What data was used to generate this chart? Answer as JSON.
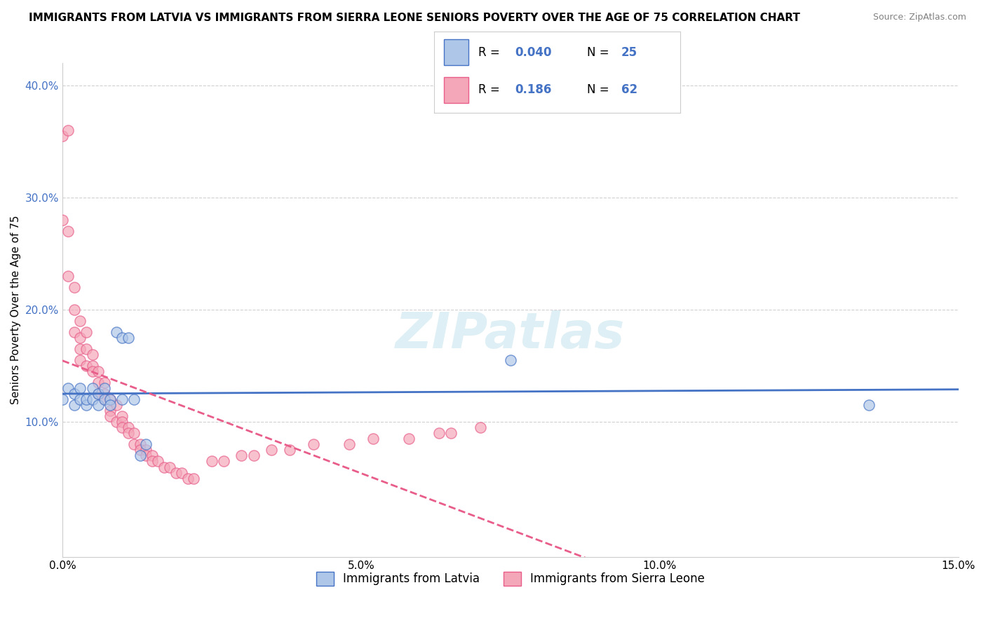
{
  "title": "IMMIGRANTS FROM LATVIA VS IMMIGRANTS FROM SIERRA LEONE SENIORS POVERTY OVER THE AGE OF 75 CORRELATION CHART",
  "source": "Source: ZipAtlas.com",
  "ylabel": "Seniors Poverty Over the Age of 75",
  "xlabel_latvia": "Immigrants from Latvia",
  "xlabel_sierra": "Immigrants from Sierra Leone",
  "watermark": "ZIPatlas",
  "xlim": [
    0.0,
    0.15
  ],
  "ylim": [
    -0.02,
    0.42
  ],
  "yticks": [
    0.1,
    0.2,
    0.3,
    0.4
  ],
  "ytick_labels": [
    "10.0%",
    "20.0%",
    "30.0%",
    "40.0%"
  ],
  "xticks": [
    0.0,
    0.05,
    0.1,
    0.15
  ],
  "xtick_labels": [
    "0.0%",
    "5.0%",
    "10.0%",
    "15.0%"
  ],
  "r_latvia": 0.04,
  "n_latvia": 25,
  "r_sierra": 0.186,
  "n_sierra": 62,
  "color_latvia": "#aec6e8",
  "color_sierra": "#f4a7b9",
  "trendline_latvia": "#4472c4",
  "trendline_sierra": "#e85d8a",
  "latvia_x": [
    0.0,
    0.001,
    0.002,
    0.002,
    0.003,
    0.003,
    0.004,
    0.004,
    0.005,
    0.005,
    0.006,
    0.006,
    0.007,
    0.007,
    0.008,
    0.008,
    0.009,
    0.01,
    0.01,
    0.011,
    0.012,
    0.013,
    0.014,
    0.075,
    0.135
  ],
  "latvia_y": [
    0.12,
    0.13,
    0.115,
    0.125,
    0.12,
    0.13,
    0.115,
    0.12,
    0.13,
    0.12,
    0.115,
    0.125,
    0.12,
    0.13,
    0.12,
    0.115,
    0.18,
    0.12,
    0.175,
    0.175,
    0.12,
    0.07,
    0.08,
    0.155,
    0.115
  ],
  "sierra_x": [
    0.0,
    0.0,
    0.001,
    0.001,
    0.001,
    0.002,
    0.002,
    0.002,
    0.003,
    0.003,
    0.003,
    0.003,
    0.004,
    0.004,
    0.004,
    0.005,
    0.005,
    0.005,
    0.006,
    0.006,
    0.006,
    0.007,
    0.007,
    0.007,
    0.008,
    0.008,
    0.008,
    0.009,
    0.009,
    0.01,
    0.01,
    0.01,
    0.011,
    0.011,
    0.012,
    0.012,
    0.013,
    0.013,
    0.014,
    0.014,
    0.015,
    0.015,
    0.016,
    0.017,
    0.018,
    0.019,
    0.02,
    0.021,
    0.022,
    0.025,
    0.027,
    0.03,
    0.032,
    0.035,
    0.038,
    0.042,
    0.048,
    0.052,
    0.058,
    0.063,
    0.065,
    0.07
  ],
  "sierra_y": [
    0.355,
    0.28,
    0.36,
    0.27,
    0.23,
    0.22,
    0.2,
    0.18,
    0.19,
    0.175,
    0.165,
    0.155,
    0.18,
    0.165,
    0.15,
    0.16,
    0.15,
    0.145,
    0.145,
    0.135,
    0.125,
    0.125,
    0.135,
    0.12,
    0.12,
    0.11,
    0.105,
    0.115,
    0.1,
    0.105,
    0.1,
    0.095,
    0.095,
    0.09,
    0.09,
    0.08,
    0.08,
    0.075,
    0.075,
    0.07,
    0.07,
    0.065,
    0.065,
    0.06,
    0.06,
    0.055,
    0.055,
    0.05,
    0.05,
    0.065,
    0.065,
    0.07,
    0.07,
    0.075,
    0.075,
    0.08,
    0.08,
    0.085,
    0.085,
    0.09,
    0.09,
    0.095
  ],
  "background_color": "#ffffff",
  "grid_color": "#d0d0d0",
  "title_fontsize": 11,
  "axis_label_fontsize": 11,
  "legend_fontsize": 12
}
